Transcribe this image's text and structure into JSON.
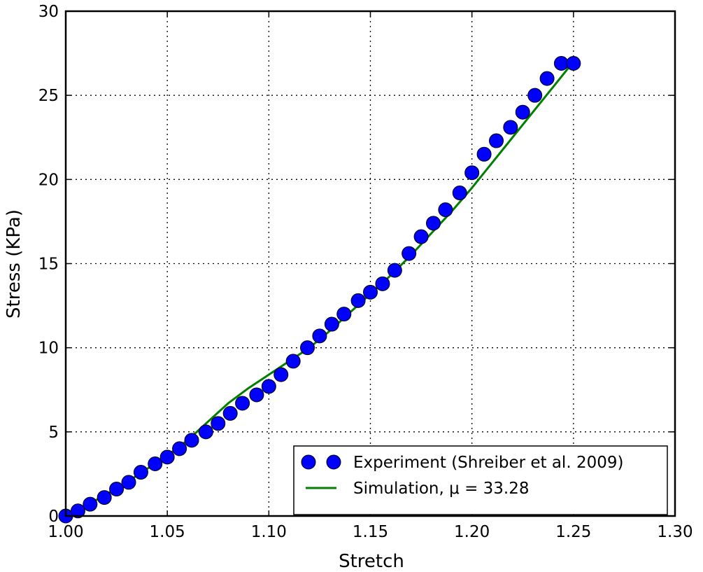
{
  "chart_data": {
    "type": "scatter",
    "xlabel": "Stretch",
    "ylabel": "Stress (KPa)",
    "xlim": [
      1.0,
      1.3
    ],
    "ylim": [
      0,
      30
    ],
    "xticks": [
      1.0,
      1.05,
      1.1,
      1.15,
      1.2,
      1.25,
      1.3
    ],
    "xtick_labels": [
      "1.00",
      "1.05",
      "1.10",
      "1.15",
      "1.20",
      "1.25",
      "1.30"
    ],
    "yticks": [
      0,
      5,
      10,
      15,
      20,
      25,
      30
    ],
    "ytick_labels": [
      "0",
      "5",
      "10",
      "15",
      "20",
      "25",
      "30"
    ],
    "grid": true,
    "legend_position": "bottom-right",
    "series": [
      {
        "name": "Experiment (Shreiber et al. 2009)",
        "kind": "markers",
        "color": "#0000ff",
        "x": [
          1.0,
          1.006,
          1.012,
          1.019,
          1.025,
          1.031,
          1.037,
          1.044,
          1.05,
          1.056,
          1.062,
          1.069,
          1.075,
          1.081,
          1.087,
          1.094,
          1.1,
          1.106,
          1.112,
          1.119,
          1.125,
          1.131,
          1.137,
          1.144,
          1.15,
          1.156,
          1.162,
          1.169,
          1.175,
          1.181,
          1.187,
          1.194,
          1.2,
          1.206,
          1.212,
          1.219,
          1.225,
          1.231,
          1.237,
          1.244,
          1.25
        ],
        "y": [
          0.0,
          0.3,
          0.7,
          1.1,
          1.6,
          2.0,
          2.6,
          3.1,
          3.5,
          4.0,
          4.5,
          5.0,
          5.5,
          6.1,
          6.7,
          7.2,
          7.7,
          8.4,
          9.2,
          10.0,
          10.7,
          11.4,
          12.0,
          12.8,
          13.3,
          13.8,
          14.6,
          15.6,
          16.6,
          17.4,
          18.2,
          19.2,
          20.4,
          21.5,
          22.3,
          23.1,
          24.0,
          25.0,
          26.0,
          26.9,
          26.9
        ]
      },
      {
        "name": "Simulation, μ = 33.28",
        "kind": "line",
        "color": "#007f00",
        "x": [
          1.0,
          1.01,
          1.02,
          1.03,
          1.04,
          1.05,
          1.06,
          1.07,
          1.08,
          1.09,
          1.1,
          1.11,
          1.12,
          1.13,
          1.14,
          1.15,
          1.16,
          1.17,
          1.18,
          1.19,
          1.2,
          1.21,
          1.22,
          1.23,
          1.24,
          1.25
        ],
        "y": [
          0.0,
          0.6,
          1.3,
          2.0,
          2.8,
          3.6,
          4.5,
          5.6,
          6.7,
          7.6,
          8.4,
          9.2,
          10.0,
          11.0,
          12.1,
          13.2,
          14.3,
          15.5,
          16.8,
          18.1,
          19.5,
          21.0,
          22.5,
          24.0,
          25.5,
          27.0
        ]
      }
    ]
  }
}
